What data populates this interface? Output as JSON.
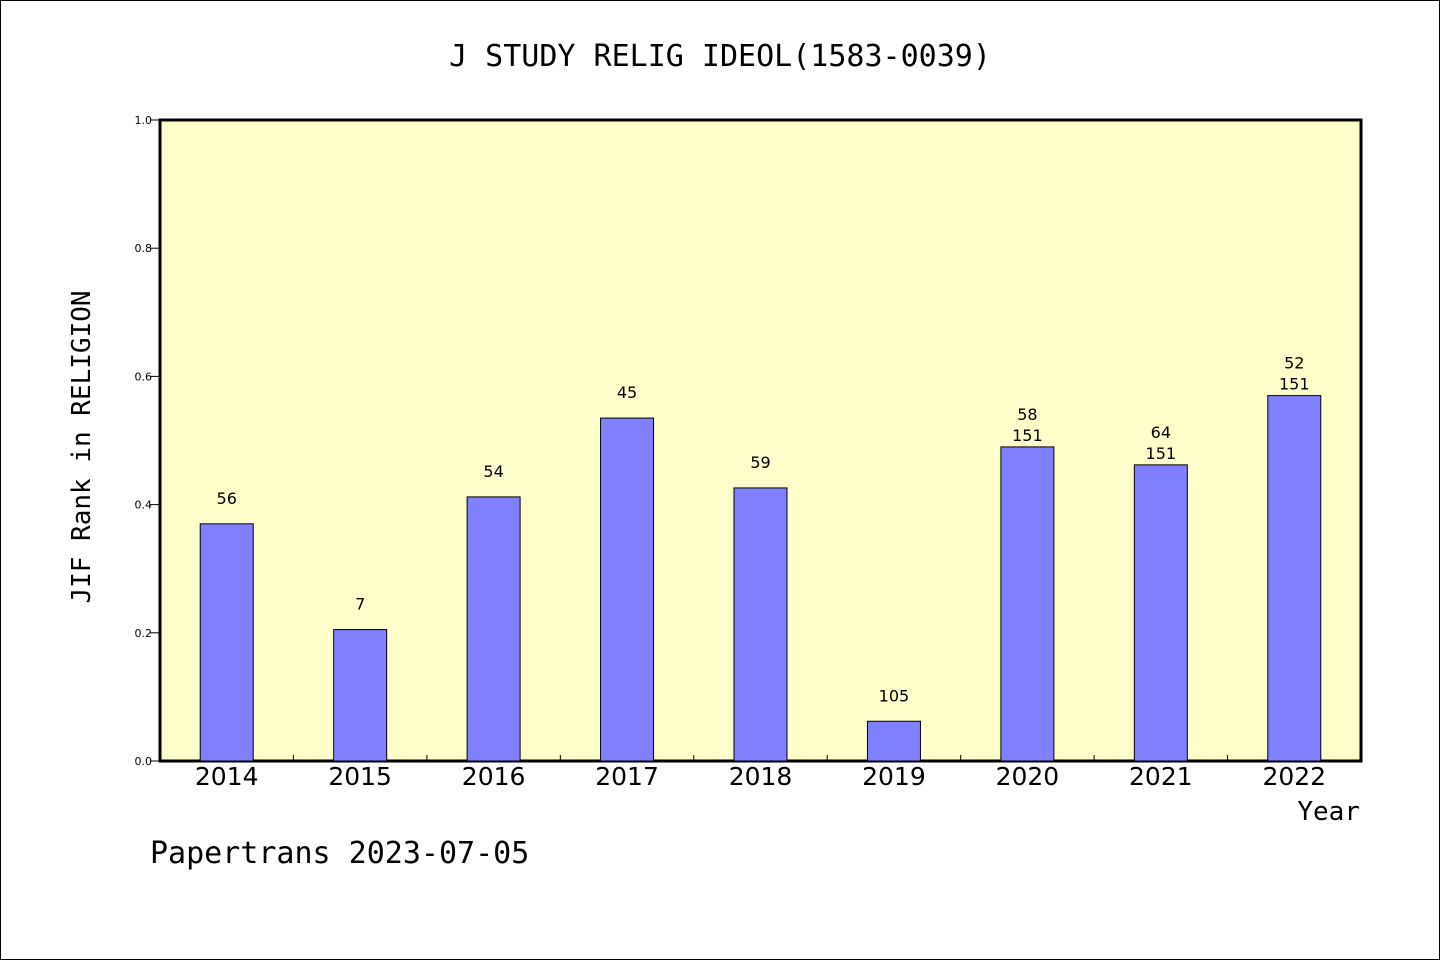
{
  "chart_data": {
    "type": "bar",
    "title": "J STUDY RELIG IDEOL(1583-0039)",
    "xlabel": "Year",
    "ylabel": "JIF Rank in RELIGION",
    "categories": [
      "2014",
      "2015",
      "2016",
      "2017",
      "2018",
      "2019",
      "2020",
      "2021",
      "2022"
    ],
    "values": [
      0.37,
      0.205,
      0.412,
      0.535,
      0.426,
      0.062,
      0.49,
      0.462,
      0.57
    ],
    "rank_labels": [
      "56",
      "7",
      "54",
      "45",
      "59",
      "105",
      "58",
      "64",
      "52"
    ],
    "total_labels": [
      "",
      "",
      "",
      "",
      "",
      "",
      "151",
      "151",
      "151"
    ],
    "ylim": [
      0,
      1.0
    ],
    "yticks": [
      "0.0",
      "0.2",
      "0.4",
      "0.6",
      "0.8",
      "1.0"
    ],
    "ytick_values": [
      0,
      0.2,
      0.4,
      0.6,
      0.8,
      1.0
    ],
    "grid": false,
    "colors": {
      "plot_bg": "#ffffcc",
      "bar": "#8080ff",
      "bar_stroke": "#000000"
    }
  },
  "footer": "Papertrans 2023-07-05"
}
